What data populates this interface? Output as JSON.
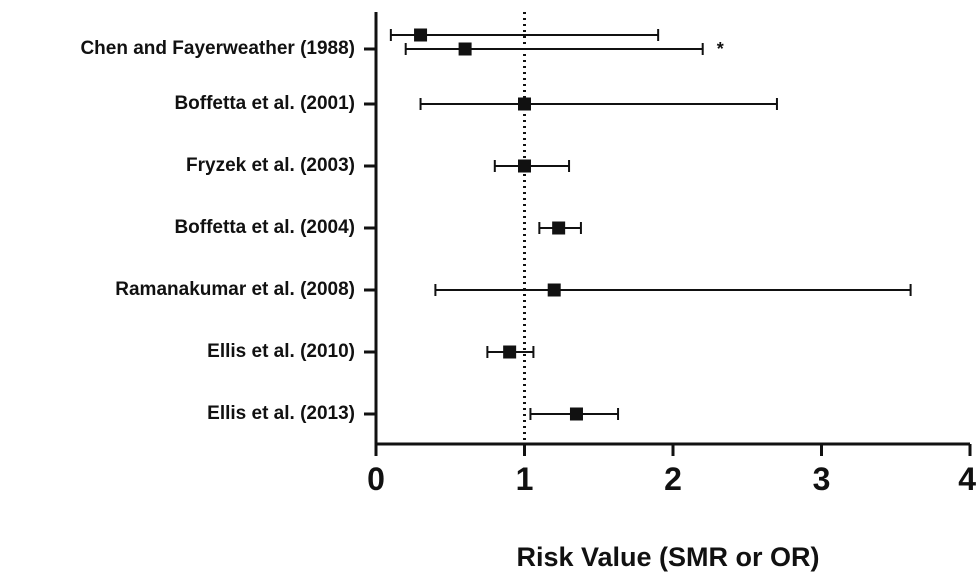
{
  "chart_data": {
    "type": "scatter",
    "subtype": "forest-plot",
    "title": "",
    "xlabel": "Risk Value (SMR or OR)",
    "ylabel": "",
    "xlim": [
      0,
      4
    ],
    "xticks": [
      0,
      1,
      2,
      3,
      4
    ],
    "reference_line": {
      "x": 1,
      "style": "dotted"
    },
    "grid": false,
    "legend": "none",
    "colors": {
      "marker": "#111111",
      "line": "#111111",
      "axis": "#111111"
    },
    "studies": [
      {
        "label": "Chen and Fayerweather (1988)",
        "estimates": [
          {
            "value": 0.3,
            "low": 0.1,
            "high": 1.9,
            "annotation": ""
          },
          {
            "value": 0.6,
            "low": 0.2,
            "high": 2.2,
            "annotation": "*"
          }
        ]
      },
      {
        "label": "Boffetta et al. (2001)",
        "estimates": [
          {
            "value": 1.0,
            "low": 0.3,
            "high": 2.7,
            "annotation": ""
          }
        ]
      },
      {
        "label": "Fryzek et al. (2003)",
        "estimates": [
          {
            "value": 1.0,
            "low": 0.8,
            "high": 1.3,
            "annotation": ""
          }
        ]
      },
      {
        "label": "Boffetta et al. (2004)",
        "estimates": [
          {
            "value": 1.23,
            "low": 1.1,
            "high": 1.38,
            "annotation": ""
          }
        ]
      },
      {
        "label": "Ramanakumar et al. (2008)",
        "estimates": [
          {
            "value": 1.2,
            "low": 0.4,
            "high": 3.6,
            "annotation": ""
          }
        ]
      },
      {
        "label": "Ellis et al. (2010)",
        "estimates": [
          {
            "value": 0.9,
            "low": 0.75,
            "high": 1.06,
            "annotation": ""
          }
        ]
      },
      {
        "label": "Ellis et al. (2013)",
        "estimates": [
          {
            "value": 1.35,
            "low": 1.04,
            "high": 1.63,
            "annotation": ""
          }
        ]
      }
    ]
  }
}
